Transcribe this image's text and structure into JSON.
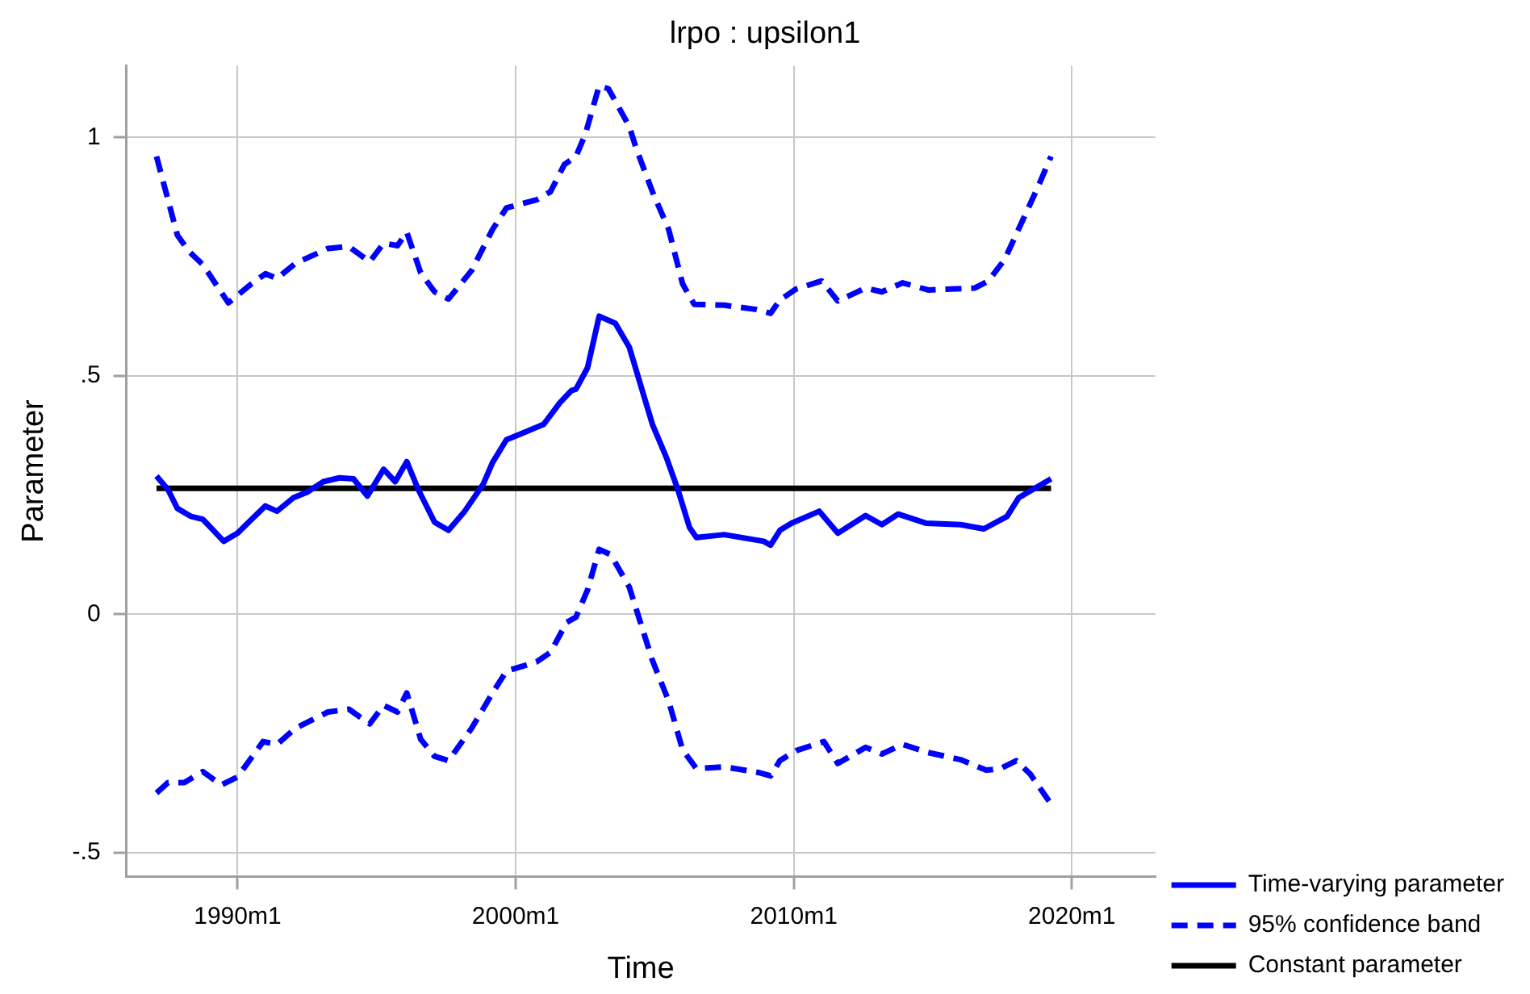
{
  "chart_data": {
    "type": "line",
    "title": "lrpo : upsilon1",
    "xlabel": "Time",
    "ylabel": "Parameter",
    "xlim": [
      "1986-01",
      "2023-01"
    ],
    "ylim": [
      -0.55,
      1.15
    ],
    "xticks": [
      {
        "value": "1990-01",
        "label": "1990m1"
      },
      {
        "value": "2000-01",
        "label": "2000m1"
      },
      {
        "value": "2010-01",
        "label": "2010m1"
      },
      {
        "value": "2020-01",
        "label": "2020m1"
      }
    ],
    "yticks": [
      {
        "value": -0.5,
        "label": "-.5"
      },
      0,
      {
        "value": 0.5,
        "label": ".5"
      },
      1
    ],
    "grid": true,
    "legend": "bottom right",
    "marker": "none",
    "series": [
      {
        "name": "Time-varying parameter",
        "color": "#0000ff",
        "line_style": "solid",
        "x": [
          "1987-02",
          "1987-07",
          "1987-11",
          "1988-05",
          "1988-10",
          "1989-07",
          "1990-01",
          "1990-07",
          "1991-01",
          "1991-06",
          "1992-01",
          "1992-07",
          "1993-02",
          "1993-09",
          "1994-03",
          "1994-09",
          "1995-04",
          "1995-09",
          "1996-02",
          "1996-07",
          "1997-02",
          "1997-08",
          "1998-03",
          "1998-11",
          "1999-03",
          "1999-09",
          "2000-03",
          "2001-01",
          "2001-08",
          "2002-01",
          "2002-03",
          "2002-08",
          "2003-01",
          "2003-08",
          "2004-02",
          "2004-12",
          "2005-06",
          "2005-11",
          "2006-04",
          "2006-07",
          "2007-07",
          "2008-12",
          "2009-03",
          "2009-07",
          "2009-12",
          "2010-12",
          "2011-08",
          "2012-08",
          "2013-03",
          "2013-10",
          "2014-10",
          "2016-01",
          "2016-11",
          "2017-09",
          "2018-02",
          "2018-09",
          "2019-04"
        ],
        "values": [
          0.29,
          0.261,
          0.222,
          0.205,
          0.199,
          0.153,
          0.17,
          0.199,
          0.227,
          0.216,
          0.244,
          0.256,
          0.278,
          0.286,
          0.284,
          0.248,
          0.304,
          0.278,
          0.32,
          0.261,
          0.193,
          0.176,
          0.216,
          0.273,
          0.318,
          0.366,
          0.378,
          0.398,
          0.443,
          0.469,
          0.472,
          0.517,
          0.625,
          0.61,
          0.56,
          0.398,
          0.329,
          0.261,
          0.182,
          0.161,
          0.167,
          0.153,
          0.145,
          0.176,
          0.191,
          0.216,
          0.17,
          0.207,
          0.188,
          0.21,
          0.191,
          0.188,
          0.179,
          0.205,
          0.244,
          0.264,
          0.284
        ]
      },
      {
        "name": "95% confidence band",
        "color": "#0000ff",
        "line_style": "dashed",
        "x": [
          "1987-02",
          "1987-11",
          "1988-04",
          "1988-10",
          "1989-09",
          "1990-07",
          "1991-01",
          "1991-06",
          "1992-02",
          "1993-04",
          "1994-01",
          "1994-10",
          "1995-04",
          "1995-10",
          "1996-02",
          "1996-08",
          "1997-02",
          "1997-08",
          "1998-06",
          "1999-03",
          "1999-09",
          "2000-10",
          "2001-04",
          "2001-10",
          "2002-03",
          "2002-07",
          "2003-01",
          "2003-05",
          "2004-02",
          "2004-05",
          "2004-12",
          "2005-07",
          "2006-01",
          "2006-06",
          "2007-07",
          "2008-09",
          "2009-03",
          "2009-07",
          "2010-02",
          "2011-01",
          "2011-08",
          "2012-08",
          "2013-03",
          "2013-12",
          "2014-11",
          "2016-07",
          "2017-01",
          "2017-08",
          "2018-03",
          "2018-10",
          "2019-04"
        ],
        "values": [
          0.96,
          0.795,
          0.761,
          0.733,
          0.653,
          0.693,
          0.714,
          0.704,
          0.736,
          0.767,
          0.771,
          0.739,
          0.778,
          0.773,
          0.801,
          0.716,
          0.676,
          0.661,
          0.721,
          0.807,
          0.852,
          0.869,
          0.886,
          0.943,
          0.96,
          1.006,
          1.108,
          1.102,
          1.023,
          0.977,
          0.886,
          0.807,
          0.693,
          0.65,
          0.648,
          0.639,
          0.631,
          0.659,
          0.682,
          0.699,
          0.657,
          0.684,
          0.676,
          0.695,
          0.68,
          0.684,
          0.699,
          0.744,
          0.818,
          0.892,
          0.96
        ]
      },
      {
        "color": "#0000ff",
        "line_style": "dashed",
        "x": [
          "1987-02",
          "1987-07",
          "1988-02",
          "1988-10",
          "1989-06",
          "1990-01",
          "1990-12",
          "1991-06",
          "1992-02",
          "1993-04",
          "1994-01",
          "1994-10",
          "1995-04",
          "1995-10",
          "1996-02",
          "1996-08",
          "1997-02",
          "1997-08",
          "1998-06",
          "1999-03",
          "1999-09",
          "2000-10",
          "2001-04",
          "2001-11",
          "2002-03",
          "2002-08",
          "2003-01",
          "2003-06",
          "2004-02",
          "2004-12",
          "2005-07",
          "2006-01",
          "2006-07",
          "2007-07",
          "2008-10",
          "2009-03",
          "2009-07",
          "2010-02",
          "2011-02",
          "2011-08",
          "2012-08",
          "2013-03",
          "2013-12",
          "2014-11",
          "2016-01",
          "2016-12",
          "2017-06",
          "2018-01",
          "2018-07",
          "2019-04"
        ],
        "values": [
          -0.375,
          -0.353,
          -0.353,
          -0.33,
          -0.358,
          -0.341,
          -0.267,
          -0.273,
          -0.239,
          -0.205,
          -0.199,
          -0.23,
          -0.191,
          -0.205,
          -0.165,
          -0.262,
          -0.298,
          -0.307,
          -0.239,
          -0.165,
          -0.119,
          -0.1,
          -0.08,
          -0.017,
          -0.006,
          0.051,
          0.136,
          0.125,
          0.057,
          -0.097,
          -0.182,
          -0.284,
          -0.324,
          -0.32,
          -0.332,
          -0.339,
          -0.307,
          -0.286,
          -0.267,
          -0.313,
          -0.279,
          -0.293,
          -0.273,
          -0.29,
          -0.305,
          -0.327,
          -0.324,
          -0.307,
          -0.335,
          -0.398
        ]
      },
      {
        "name": "Constant parameter",
        "color": "#000000",
        "line_style": "solid",
        "x": [
          "1987-02",
          "2019-04"
        ],
        "values": [
          0.264,
          0.264
        ]
      }
    ]
  }
}
